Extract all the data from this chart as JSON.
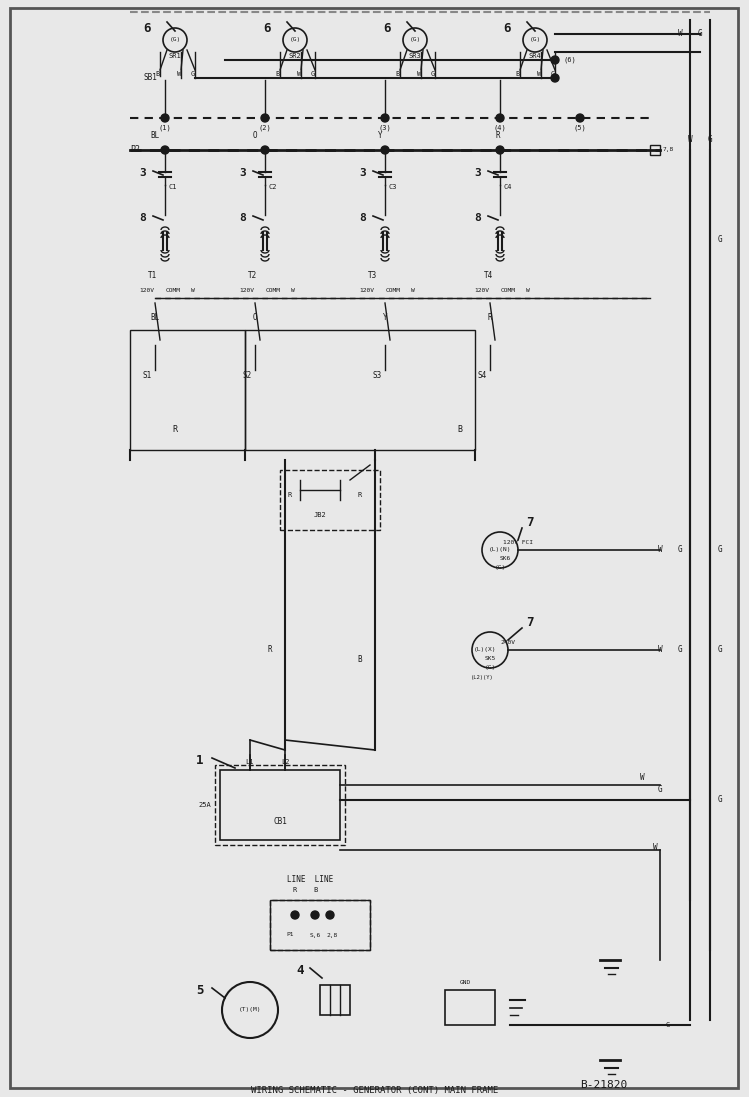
{
  "title": "WIRING SCHEMATIC",
  "subtitle": "GENERATOR (CONT) MAIN FRAME",
  "part_number": "B-21820",
  "bg_color": "#f0f0f0",
  "line_color": "#1a1a1a",
  "border_color": "#333333",
  "fig_width": 7.49,
  "fig_height": 10.97,
  "dpi": 100
}
